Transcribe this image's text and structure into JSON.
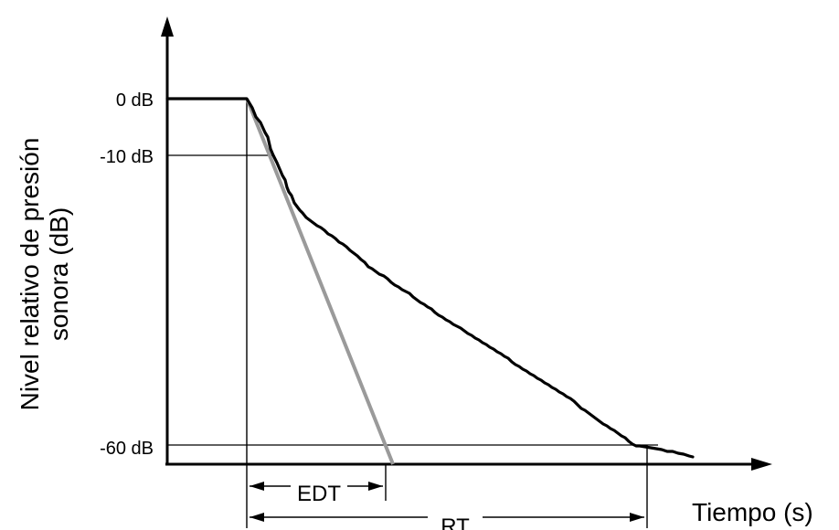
{
  "y_axis": {
    "label_line1": "Nivel relativo de presión",
    "label_line2": "sonora (dB)",
    "ticks": [
      "0 dB",
      "-10 dB",
      "-60 dB"
    ]
  },
  "x_axis": {
    "label": "Tiempo (s)"
  },
  "dimensions": {
    "edt_label": "EDT",
    "rt_label": "RT"
  },
  "colors": {
    "decay_curve": "#000000",
    "edt_slope": "#9a9a9a"
  }
}
